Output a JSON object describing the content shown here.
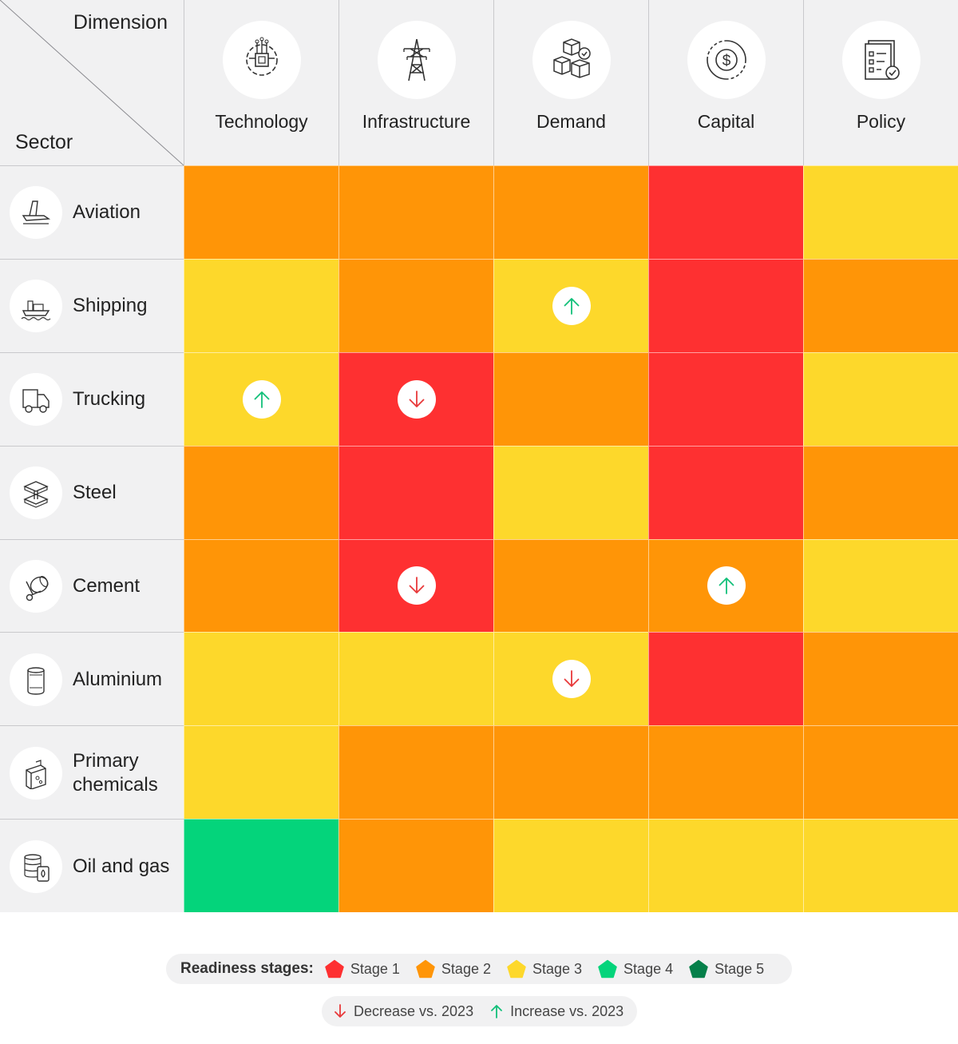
{
  "chart_data": {
    "type": "heatmap",
    "corner": {
      "column_axis": "Dimension",
      "row_axis": "Sector"
    },
    "columns": [
      {
        "label": "Technology",
        "icon": "chip-gear-icon"
      },
      {
        "label": "Infrastructure",
        "icon": "pylon-icon"
      },
      {
        "label": "Demand",
        "icon": "boxes-check-icon"
      },
      {
        "label": "Capital",
        "icon": "dollar-cycle-icon"
      },
      {
        "label": "Policy",
        "icon": "checklist-icon"
      }
    ],
    "rows": [
      {
        "label": "Aviation",
        "icon": "airplane-tail-icon"
      },
      {
        "label": "Shipping",
        "icon": "ship-icon"
      },
      {
        "label": "Trucking",
        "icon": "truck-icon"
      },
      {
        "label": "Steel",
        "icon": "steel-beam-icon"
      },
      {
        "label": "Cement",
        "icon": "cement-mixer-icon"
      },
      {
        "label": "Aluminium",
        "icon": "can-icon"
      },
      {
        "label": "Primary chemicals",
        "icon": "chemical-container-icon"
      },
      {
        "label": "Oil and gas",
        "icon": "oil-barrel-icon"
      }
    ],
    "stages": [
      [
        2,
        2,
        2,
        1,
        3
      ],
      [
        3,
        2,
        3,
        1,
        2
      ],
      [
        3,
        1,
        2,
        1,
        3
      ],
      [
        2,
        1,
        3,
        1,
        2
      ],
      [
        2,
        1,
        2,
        2,
        3
      ],
      [
        3,
        3,
        3,
        1,
        2
      ],
      [
        3,
        2,
        2,
        2,
        2
      ],
      [
        4,
        2,
        3,
        3,
        3
      ]
    ],
    "changes": [
      [
        null,
        null,
        null,
        null,
        null
      ],
      [
        null,
        null,
        "increase",
        null,
        null
      ],
      [
        "increase",
        "decrease",
        null,
        null,
        null
      ],
      [
        null,
        null,
        null,
        null,
        null
      ],
      [
        null,
        "decrease",
        null,
        "increase",
        null
      ],
      [
        null,
        null,
        "decrease",
        null,
        null
      ],
      [
        null,
        null,
        null,
        null,
        null
      ],
      [
        null,
        null,
        null,
        null,
        null
      ]
    ],
    "stage_colors": {
      "1": "#fe3031",
      "2": "#ff9507",
      "3": "#fdd82b",
      "4": "#04d47b",
      "5": "#05804a"
    }
  },
  "legend": {
    "title": "Readiness stages:",
    "stages": [
      {
        "label": "Stage 1",
        "color": "#fe3031"
      },
      {
        "label": "Stage 2",
        "color": "#ff9507"
      },
      {
        "label": "Stage 3",
        "color": "#fdd82b"
      },
      {
        "label": "Stage 4",
        "color": "#04d47b"
      },
      {
        "label": "Stage 5",
        "color": "#05804a"
      }
    ],
    "decrease_label": "Decrease vs. 2023",
    "increase_label": "Increase vs. 2023",
    "decrease_color": "#e8393a",
    "increase_color": "#13c07a"
  }
}
